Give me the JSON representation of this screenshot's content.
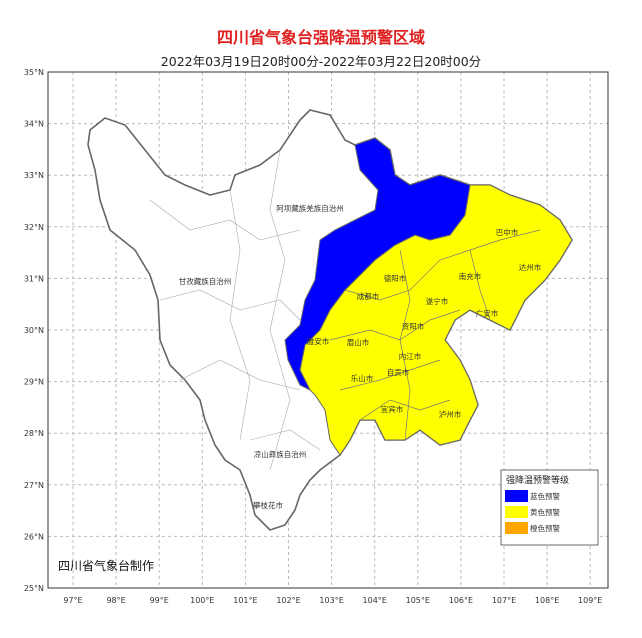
{
  "title": "四川省气象台强降温预警区域",
  "subtitle": "2022年03月19日20时00分-2022年03月22日20时00分",
  "credit": "四川省气象台制作",
  "axes": {
    "longitude_ticks": [
      "97°E",
      "98°E",
      "99°E",
      "100°E",
      "101°E",
      "102°E",
      "103°E",
      "104°E",
      "105°E",
      "106°E",
      "107°E",
      "108°E",
      "109°E"
    ],
    "latitude_ticks": [
      "35°N",
      "34°N",
      "33°N",
      "32°N",
      "31°N",
      "30°N",
      "29°N",
      "28°N",
      "27°N",
      "26°N",
      "25°N"
    ]
  },
  "legend": {
    "title": "强降温预警等级",
    "items": [
      {
        "label": "蓝色预警",
        "color": "#0000ff"
      },
      {
        "label": "黄色预警",
        "color": "#ffff00"
      },
      {
        "label": "橙色预警",
        "color": "#ffa500"
      }
    ]
  },
  "regions": {
    "blue_color": "#0000ff",
    "yellow_color": "#ffff00"
  },
  "labels": [
    "阿坝藏族羌族自治州",
    "甘孜藏族自治州",
    "凉山彝族自治州",
    "攀枝花市",
    "巴中市",
    "达州市",
    "南充市",
    "广安市",
    "遂宁市",
    "德阳市",
    "成都市",
    "雅安市",
    "眉山市",
    "资阳市",
    "内江市",
    "自贡市",
    "乐山市",
    "宜宾市",
    "泸州市"
  ]
}
